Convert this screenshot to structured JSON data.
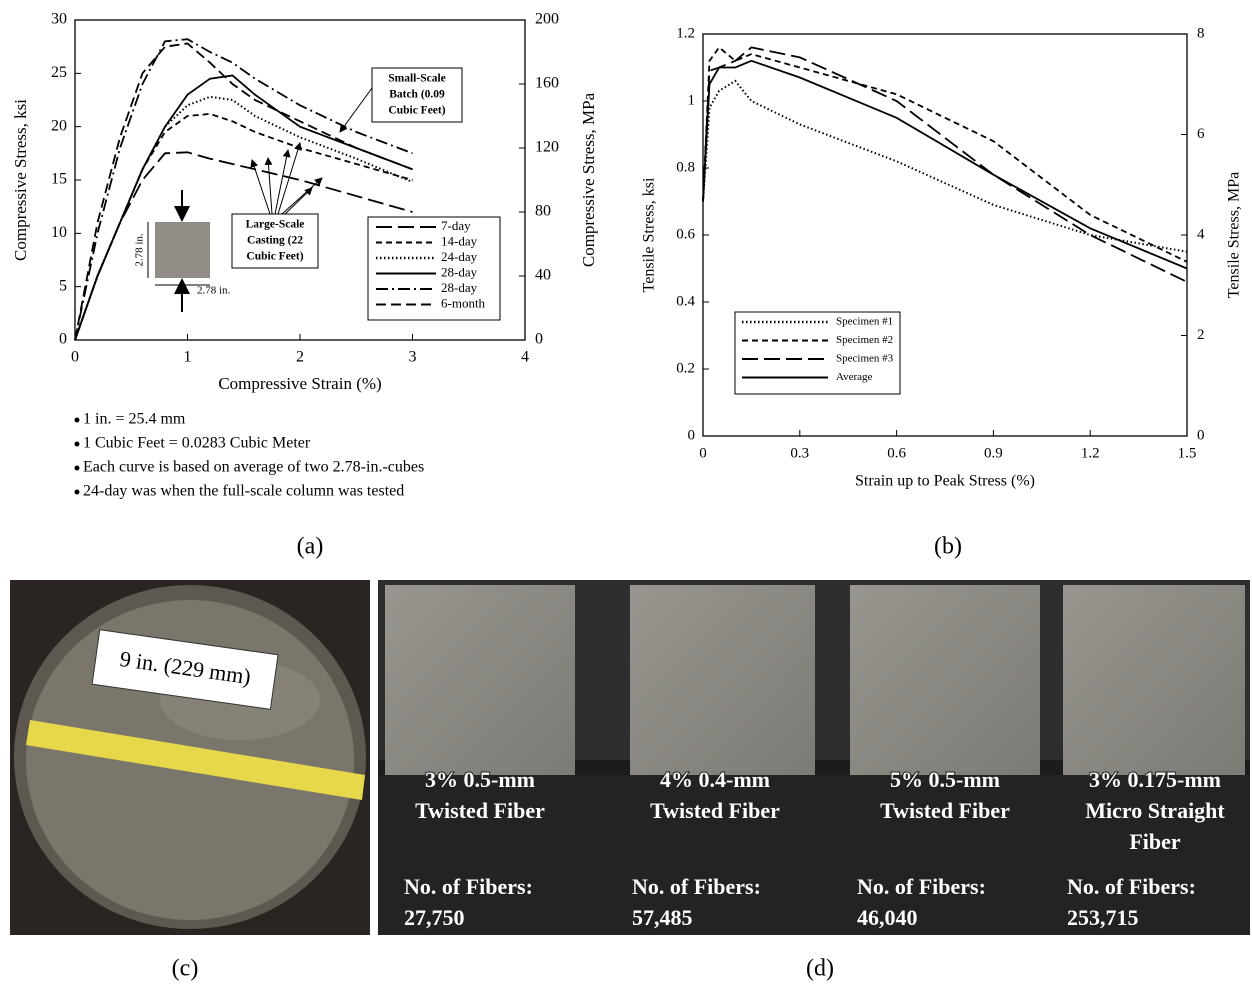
{
  "chart_data": [
    {
      "type": "line",
      "panel_label": "(a)",
      "xlabel": "Compressive Strain (%)",
      "ylabel": "Compressive Stress, ksi",
      "y2label": "Compressive Stress, MPa",
      "xlim": [
        0,
        4
      ],
      "xticks": [
        0,
        1,
        2,
        3,
        4
      ],
      "ylim": [
        0,
        30
      ],
      "yticks": [
        0,
        5,
        10,
        15,
        20,
        25,
        30
      ],
      "y2lim": [
        0,
        200
      ],
      "y2ticks": [
        0,
        40,
        80,
        120,
        160,
        200
      ],
      "legend": "lower right",
      "x": [
        0,
        0.2,
        0.4,
        0.6,
        0.8,
        1.0,
        1.2,
        1.4,
        1.6,
        2.0,
        2.5,
        3.0
      ],
      "series": [
        {
          "name": "7-day",
          "color": "#000",
          "dash": "long-dash",
          "values": [
            0,
            6,
            11,
            15,
            17.5,
            17.6,
            17,
            16.5,
            16,
            15,
            13.5,
            12
          ]
        },
        {
          "name": "14-day",
          "color": "#000",
          "dash": "dash",
          "values": [
            0,
            6,
            11,
            16,
            19.5,
            21,
            21.2,
            20.5,
            19.5,
            18,
            16.5,
            15
          ]
        },
        {
          "name": "24-day",
          "color": "#000",
          "dash": "dotted",
          "values": [
            0,
            6,
            11,
            16,
            20,
            22,
            22.8,
            22.5,
            21,
            19,
            17,
            14.8
          ]
        },
        {
          "name": "28-day",
          "color": "#000",
          "dash": "solid",
          "values": [
            0,
            6,
            11,
            16,
            20,
            23,
            24.5,
            24.8,
            23,
            20,
            18,
            16
          ]
        },
        {
          "name": "28-day",
          "color": "#000",
          "dash": "dash-dot",
          "values": [
            0,
            10,
            18,
            24,
            28,
            28.2,
            27,
            26,
            24.5,
            22,
            19.5,
            17.5
          ]
        },
        {
          "name": "6-month",
          "color": "#000",
          "dash": "medium-dash",
          "values": [
            0,
            11,
            19,
            25,
            27.5,
            27.8,
            26,
            24,
            22.5,
            20.5,
            18,
            16
          ]
        }
      ],
      "annotations": [
        {
          "lines": [
            "Small-Scale",
            "Batch (0.09",
            "Cubic Feet)"
          ]
        },
        {
          "lines": [
            "Large-Scale",
            "Casting (22",
            "Cubic Feet)"
          ]
        }
      ],
      "inset_labels": [
        "2.78 in.",
        "2.78 in."
      ]
    },
    {
      "type": "line",
      "panel_label": "(b)",
      "xlabel": "Strain up to Peak Stress (%)",
      "ylabel": "Tensile Stress, ksi",
      "y2label": "Tensile Stress, MPa",
      "xlim": [
        0,
        1.5
      ],
      "xticks": [
        0,
        0.3,
        0.6,
        0.9,
        1.2,
        1.5
      ],
      "ylim": [
        0,
        1.2
      ],
      "yticks": [
        0,
        0.2,
        0.4,
        0.6,
        0.8,
        1,
        1.2
      ],
      "y2lim": [
        0,
        8
      ],
      "y2ticks": [
        0,
        2,
        4,
        6,
        8
      ],
      "legend": "lower left",
      "x": [
        0,
        0.02,
        0.05,
        0.1,
        0.15,
        0.3,
        0.6,
        0.9,
        1.2,
        1.5
      ],
      "series": [
        {
          "name": "Specimen #1",
          "color": "#000",
          "dash": "dotted",
          "values": [
            0.7,
            0.98,
            1.03,
            1.06,
            1.0,
            0.93,
            0.82,
            0.69,
            0.6,
            0.55
          ]
        },
        {
          "name": "Specimen #2",
          "color": "#000",
          "dash": "dash",
          "values": [
            0.7,
            1.12,
            1.16,
            1.12,
            1.14,
            1.1,
            1.02,
            0.88,
            0.66,
            0.52
          ]
        },
        {
          "name": "Specimen #3",
          "color": "#000",
          "dash": "long-dash",
          "values": [
            0.7,
            1.09,
            1.1,
            1.12,
            1.16,
            1.13,
            1.0,
            0.78,
            0.6,
            0.46
          ]
        },
        {
          "name": "Average",
          "color": "#000",
          "dash": "solid",
          "values": [
            0.7,
            1.05,
            1.1,
            1.1,
            1.12,
            1.07,
            0.95,
            0.78,
            0.62,
            0.5
          ]
        }
      ]
    }
  ],
  "notes": [
    "1 in. = 25.4 mm",
    "1 Cubic Feet = 0.0283 Cubic Meter",
    "Each curve is based on average of two 2.78-in.-cubes",
    "24-day was when the full-scale column was tested"
  ],
  "photos": [
    {
      "label": "(c)",
      "caption": "9 in. (229 mm)"
    },
    {
      "label": "(d)",
      "specimens": [
        {
          "fiber": [
            "3% 0.5-mm",
            "Twisted Fiber"
          ],
          "count_label": "No. of Fibers:",
          "count": "27,750"
        },
        {
          "fiber": [
            "4% 0.4-mm",
            "Twisted Fiber"
          ],
          "count_label": "No. of Fibers:",
          "count": "57,485"
        },
        {
          "fiber": [
            "5% 0.5-mm",
            "Twisted Fiber"
          ],
          "count_label": "No. of Fibers:",
          "count": "46,040"
        },
        {
          "fiber": [
            "3% 0.175-mm",
            "Micro Straight",
            "Fiber"
          ],
          "count_label": "No. of Fibers:",
          "count": "253,715"
        }
      ]
    }
  ]
}
